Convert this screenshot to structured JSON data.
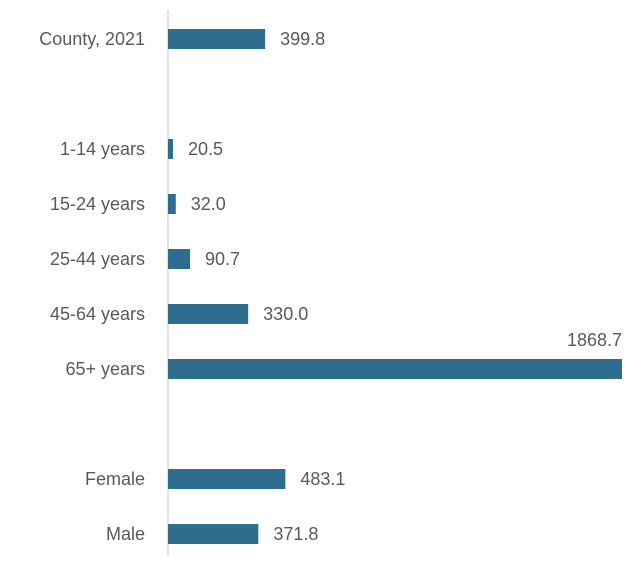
{
  "chart_data": {
    "type": "hbar",
    "categories": [
      "County, 2021",
      null,
      "1-14 years",
      "15-24 years",
      "25-44 years",
      "45-64 years",
      "65+ years",
      null,
      "Female",
      "Male"
    ],
    "values": [
      399.8,
      null,
      20.5,
      32.0,
      90.7,
      330.0,
      1868.7,
      null,
      483.1,
      371.8
    ],
    "value_labels": [
      "399.8",
      null,
      "20.5",
      "32.0",
      "90.7",
      "330.0",
      "1868.7",
      null,
      "483.1",
      "371.8"
    ],
    "color": "#2e6d8e"
  }
}
